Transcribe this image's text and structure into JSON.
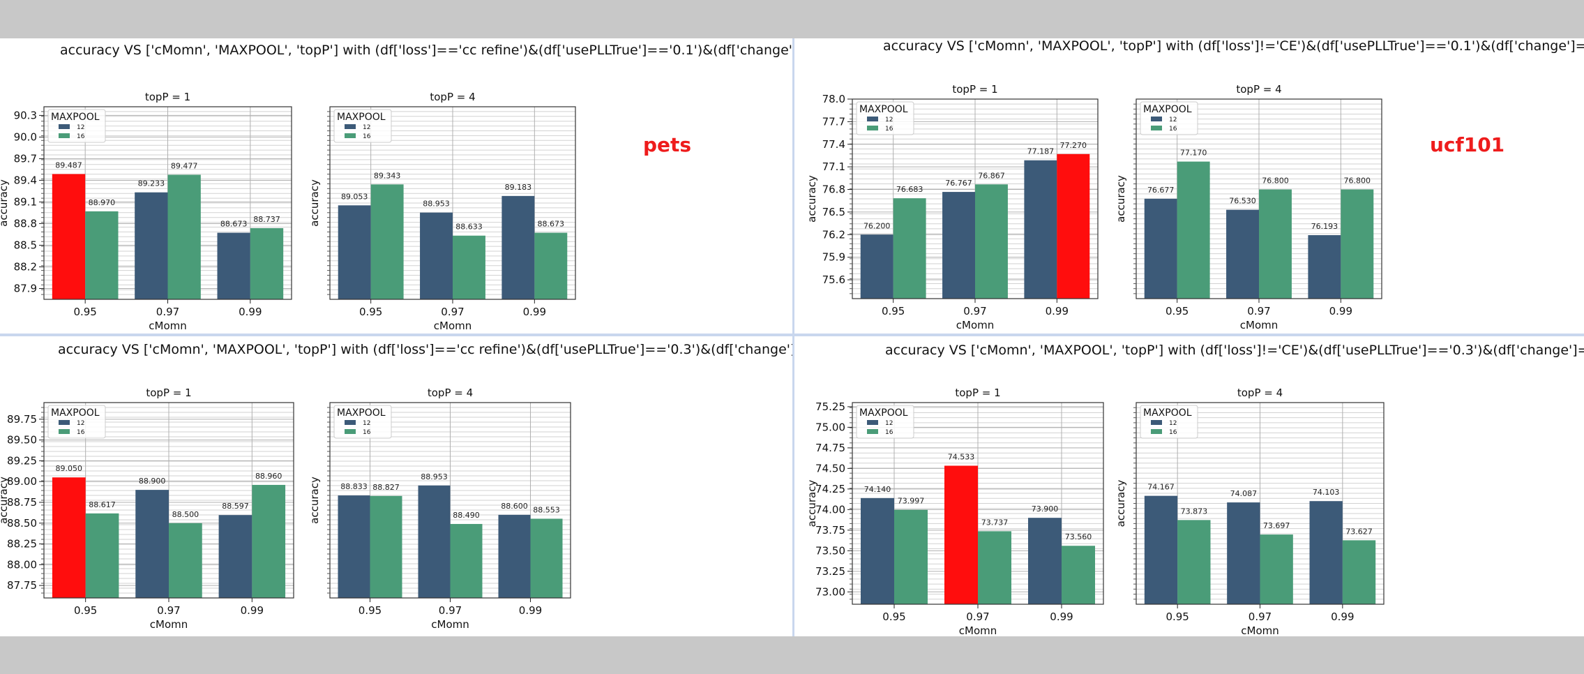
{
  "colors": {
    "c12": "#3c5a78",
    "c16": "#4a9c78",
    "highlight": "#ff0d0d",
    "label": "#ee1c1c"
  },
  "labels": {
    "left_dataset": "pets",
    "right_dataset": "ucf101"
  },
  "panels": {
    "tl": {
      "title": "accuracy VS ['cMomn', 'MAXPOOL', 'topP'] with (df['loss']=='cc refine')&(df['usePLLTrue']=='0.1')&(df['change']=='new')"
    },
    "tr": {
      "title": "accuracy VS ['cMomn', 'MAXPOOL', 'topP'] with (df['loss']!='CE')&(df['usePLLTrue']=='0.1')&(df['change']=='new')"
    },
    "bl": {
      "title": "accuracy VS ['cMomn', 'MAXPOOL', 'topP'] with (df['loss']=='cc refine')&(df['usePLLTrue']=='0.3')&(df['change']=='new')"
    },
    "br": {
      "title": "accuracy VS ['cMomn', 'MAXPOOL', 'topP'] with (df['loss']!='CE')&(df['usePLLTrue']=='0.3')&(df['change']=='new')"
    }
  },
  "chart_data": [
    {
      "id": "tl1",
      "type": "bar",
      "title": "topP = 1",
      "xlabel": "cMomn",
      "ylabel": "accuracy",
      "categories": [
        "0.95",
        "0.97",
        "0.99"
      ],
      "legend_title": "MAXPOOL",
      "legend_position": "top-left",
      "series": [
        {
          "name": "12",
          "values": [
            89.487,
            89.233,
            88.673
          ]
        },
        {
          "name": "16",
          "values": [
            88.97,
            89.477,
            88.737
          ]
        }
      ],
      "labels": [
        [
          "89.487",
          "89.233",
          "88.673"
        ],
        [
          "88.970",
          "89.477",
          "88.737"
        ]
      ],
      "yticks": [
        "87.9",
        "88.2",
        "88.5",
        "88.8",
        "89.1",
        "89.4",
        "89.7",
        "90.0",
        "90.3"
      ],
      "ylim": [
        87.75,
        90.42
      ],
      "highlight": [
        [
          0,
          0
        ]
      ]
    },
    {
      "id": "tl4",
      "type": "bar",
      "title": "topP = 4",
      "xlabel": "cMomn",
      "ylabel": "accuracy",
      "categories": [
        "0.95",
        "0.97",
        "0.99"
      ],
      "legend_title": "MAXPOOL",
      "legend_position": "top-left",
      "series": [
        {
          "name": "12",
          "values": [
            89.053,
            88.953,
            89.183
          ]
        },
        {
          "name": "16",
          "values": [
            89.343,
            88.633,
            88.673
          ]
        }
      ],
      "labels": [
        [
          "89.053",
          "88.953",
          "89.183"
        ],
        [
          "89.343",
          "88.633",
          "88.673"
        ]
      ],
      "yticks": [],
      "ylim": [
        87.75,
        90.42
      ],
      "highlight": []
    },
    {
      "id": "tr1",
      "type": "bar",
      "title": "topP = 1",
      "xlabel": "cMomn",
      "ylabel": "accuracy",
      "categories": [
        "0.95",
        "0.97",
        "0.99"
      ],
      "legend_title": "MAXPOOL",
      "legend_position": "top-left",
      "series": [
        {
          "name": "12",
          "values": [
            76.2,
            76.767,
            77.187
          ]
        },
        {
          "name": "16",
          "values": [
            76.683,
            76.867,
            77.27
          ]
        }
      ],
      "labels": [
        [
          "76.200",
          "76.767",
          "77.187"
        ],
        [
          "76.683",
          "76.867",
          "77.270"
        ]
      ],
      "yticks": [
        "75.6",
        "75.9",
        "76.2",
        "76.5",
        "76.8",
        "77.1",
        "77.4",
        "77.7",
        "78.0"
      ],
      "ylim": [
        75.35,
        78.0
      ],
      "highlight": [
        [
          1,
          2
        ]
      ]
    },
    {
      "id": "tr4",
      "type": "bar",
      "title": "topP = 4",
      "xlabel": "cMomn",
      "ylabel": "accuracy",
      "categories": [
        "0.95",
        "0.97",
        "0.99"
      ],
      "legend_title": "MAXPOOL",
      "legend_position": "top-left",
      "series": [
        {
          "name": "12",
          "values": [
            76.677,
            76.53,
            76.193
          ]
        },
        {
          "name": "16",
          "values": [
            77.17,
            76.8,
            76.8
          ]
        }
      ],
      "labels": [
        [
          "76.677",
          "76.530",
          "76.193"
        ],
        [
          "77.170",
          "76.800",
          "76.800"
        ]
      ],
      "yticks": [],
      "ylim": [
        75.35,
        78.0
      ],
      "highlight": []
    },
    {
      "id": "bl1",
      "type": "bar",
      "title": "topP = 1",
      "xlabel": "cMomn",
      "ylabel": "accuracy",
      "categories": [
        "0.95",
        "0.97",
        "0.99"
      ],
      "legend_title": "MAXPOOL",
      "legend_position": "top-left",
      "series": [
        {
          "name": "12",
          "values": [
            89.05,
            88.9,
            88.597
          ]
        },
        {
          "name": "16",
          "values": [
            88.617,
            88.5,
            88.96
          ]
        }
      ],
      "labels": [
        [
          "89.050",
          "88.900",
          "88.597"
        ],
        [
          "88.617",
          "88.500",
          "88.960"
        ]
      ],
      "yticks": [
        "87.75",
        "88.00",
        "88.25",
        "88.50",
        "88.75",
        "89.00",
        "89.25",
        "89.50",
        "89.75"
      ],
      "ylim": [
        87.6,
        89.95
      ],
      "highlight": [
        [
          0,
          0
        ]
      ]
    },
    {
      "id": "bl4",
      "type": "bar",
      "title": "topP = 4",
      "xlabel": "cMomn",
      "ylabel": "accuracy",
      "categories": [
        "0.95",
        "0.97",
        "0.99"
      ],
      "legend_title": "MAXPOOL",
      "legend_position": "top-left",
      "series": [
        {
          "name": "12",
          "values": [
            88.833,
            88.953,
            88.6
          ]
        },
        {
          "name": "16",
          "values": [
            88.827,
            88.49,
            88.553
          ]
        }
      ],
      "labels": [
        [
          "88.833",
          "88.953",
          "88.600"
        ],
        [
          "88.827",
          "88.490",
          "88.553"
        ]
      ],
      "yticks": [],
      "ylim": [
        87.6,
        89.95
      ],
      "highlight": []
    },
    {
      "id": "br1",
      "type": "bar",
      "title": "topP = 1",
      "xlabel": "cMomn",
      "ylabel": "accuracy",
      "categories": [
        "0.95",
        "0.97",
        "0.99"
      ],
      "legend_title": "MAXPOOL",
      "legend_position": "top-left",
      "series": [
        {
          "name": "12",
          "values": [
            74.14,
            74.533,
            73.9
          ]
        },
        {
          "name": "16",
          "values": [
            73.997,
            73.737,
            73.56
          ]
        }
      ],
      "labels": [
        [
          "74.140",
          "74.533",
          "73.900"
        ],
        [
          "73.997",
          "73.737",
          "73.560"
        ]
      ],
      "yticks": [
        "73.00",
        "73.25",
        "73.50",
        "73.75",
        "74.00",
        "74.25",
        "74.50",
        "74.75",
        "75.00",
        "75.25"
      ],
      "ylim": [
        72.85,
        75.3
      ],
      "highlight": [
        [
          0,
          1
        ]
      ]
    },
    {
      "id": "br4",
      "type": "bar",
      "title": "topP = 4",
      "xlabel": "cMomn",
      "ylabel": "accuracy",
      "categories": [
        "0.95",
        "0.97",
        "0.99"
      ],
      "legend_title": "MAXPOOL",
      "legend_position": "top-left",
      "series": [
        {
          "name": "12",
          "values": [
            74.167,
            74.087,
            74.103
          ]
        },
        {
          "name": "16",
          "values": [
            73.873,
            73.697,
            73.627
          ]
        }
      ],
      "labels": [
        [
          "74.167",
          "74.087",
          "74.103"
        ],
        [
          "73.873",
          "73.697",
          "73.627"
        ]
      ],
      "yticks": [],
      "ylim": [
        72.85,
        75.3
      ],
      "highlight": []
    }
  ]
}
